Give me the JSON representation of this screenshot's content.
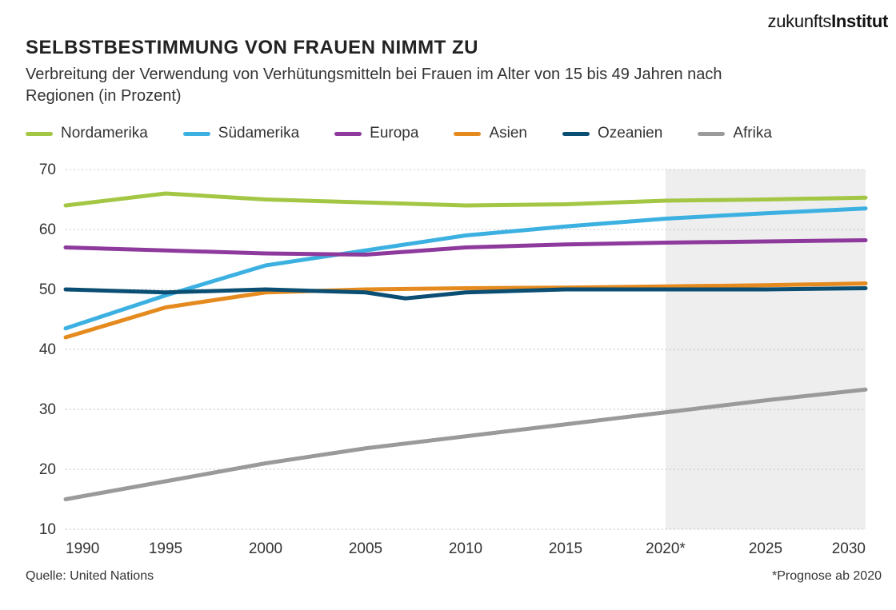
{
  "brand": {
    "light": "zukunfts",
    "bold": "Institut"
  },
  "title": "SELBSTBESTIMMUNG VON FRAUEN NIMMT ZU",
  "subtitle": "Verbreitung der Verwendung von Verhütungsmitteln bei Frauen im Alter von 15 bis 49 Jahren nach Regionen (in Prozent)",
  "source": "Quelle: United Nations",
  "forecast_note": "*Prognose ab 2020",
  "chart": {
    "type": "line",
    "background_color": "#ffffff",
    "forecast_band_color": "#eeeeee",
    "grid_color": "#bfbfbf",
    "axis_text_color": "#333333",
    "title_fontsize": 24,
    "subtitle_fontsize": 20,
    "axis_fontsize": 19,
    "legend_fontsize": 19,
    "line_width": 5,
    "x": {
      "min": 1990,
      "max": 2030,
      "ticks": [
        1990,
        1995,
        2000,
        2005,
        2010,
        2015,
        2020,
        2025,
        2030
      ],
      "tick_labels": [
        "1990",
        "1995",
        "2000",
        "2005",
        "2010",
        "2015",
        "2020*",
        "2025",
        "2030"
      ],
      "grid": false
    },
    "y": {
      "min": 10,
      "max": 70,
      "ticks": [
        10,
        20,
        30,
        40,
        50,
        60,
        70
      ],
      "grid": true,
      "grid_dash": "2 3"
    },
    "forecast_from_x": 2020,
    "series": [
      {
        "id": "nordamerika",
        "label": "Nordamerika",
        "color": "#a3c644",
        "x": [
          1990,
          1995,
          2000,
          2005,
          2010,
          2015,
          2020,
          2025,
          2030
        ],
        "y": [
          64,
          66,
          65,
          64.5,
          64,
          64.2,
          64.8,
          65,
          65.3
        ]
      },
      {
        "id": "suedamerika",
        "label": "Südamerika",
        "color": "#3cb1e1",
        "x": [
          1990,
          1995,
          2000,
          2005,
          2010,
          2015,
          2020,
          2025,
          2030
        ],
        "y": [
          43.5,
          49,
          54,
          56.5,
          59,
          60.5,
          61.8,
          62.7,
          63.5
        ]
      },
      {
        "id": "europa",
        "label": "Europa",
        "color": "#8e3a9d",
        "x": [
          1990,
          1995,
          2000,
          2005,
          2010,
          2015,
          2020,
          2025,
          2030
        ],
        "y": [
          57,
          56.5,
          56,
          55.8,
          57,
          57.5,
          57.8,
          58,
          58.2
        ]
      },
      {
        "id": "asien",
        "label": "Asien",
        "color": "#e48a1e",
        "x": [
          1990,
          1995,
          2000,
          2005,
          2010,
          2015,
          2020,
          2025,
          2030
        ],
        "y": [
          42,
          47,
          49.5,
          50,
          50.2,
          50.3,
          50.5,
          50.7,
          51
        ]
      },
      {
        "id": "ozeanien",
        "label": "Ozeanien",
        "color": "#0a4e73",
        "x": [
          1990,
          1995,
          2000,
          2005,
          2007,
          2010,
          2015,
          2020,
          2025,
          2030
        ],
        "y": [
          50,
          49.5,
          50,
          49.5,
          48.5,
          49.5,
          50,
          50,
          50,
          50.2
        ]
      },
      {
        "id": "afrika",
        "label": "Afrika",
        "color": "#9a9a9a",
        "x": [
          1990,
          1995,
          2000,
          2005,
          2010,
          2015,
          2020,
          2025,
          2030
        ],
        "y": [
          15,
          18,
          21,
          23.5,
          25.5,
          27.5,
          29.5,
          31.5,
          33.3
        ]
      }
    ]
  }
}
